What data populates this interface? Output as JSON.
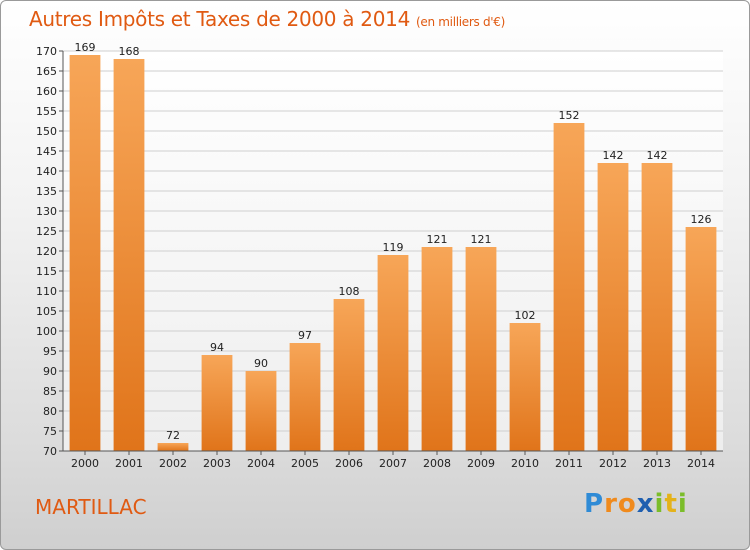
{
  "chart_data": {
    "type": "bar",
    "title": "Autres Impôts et Taxes de 2000 à 2014",
    "subtitle": "(en milliers d'€)",
    "categories": [
      "2000",
      "2001",
      "2002",
      "2003",
      "2004",
      "2005",
      "2006",
      "2007",
      "2008",
      "2009",
      "2010",
      "2011",
      "2012",
      "2013",
      "2014"
    ],
    "values": [
      169,
      168,
      72,
      94,
      90,
      97,
      108,
      119,
      121,
      121,
      102,
      152,
      142,
      142,
      126
    ],
    "ylim": [
      70,
      170
    ],
    "yticks": [
      70,
      75,
      80,
      85,
      90,
      95,
      100,
      105,
      110,
      115,
      120,
      125,
      130,
      135,
      140,
      145,
      150,
      155,
      160,
      165,
      170
    ],
    "grid": true,
    "bar_color_top": "#f7a658",
    "bar_color_bottom": "#e0741a"
  },
  "footer": {
    "commune": "MARTILLAC",
    "logo_letters": [
      "P",
      "r",
      "o",
      "x",
      "i",
      "t",
      "i"
    ]
  }
}
